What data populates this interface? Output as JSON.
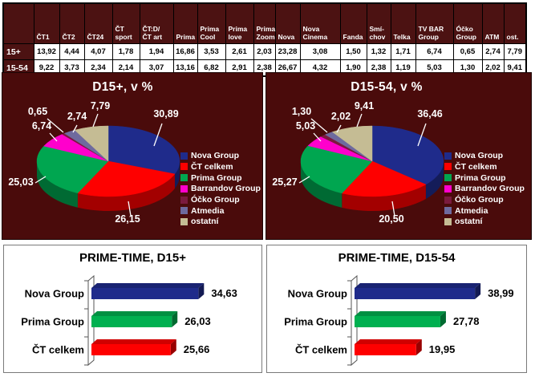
{
  "colors": {
    "panel_bg": "#4a0b0b",
    "table_header_bg": "#4c1212",
    "series": [
      "#1f2b8b",
      "#fe0000",
      "#00a650",
      "#ff00cc",
      "#7a1a3e",
      "#6e6a9e",
      "#c5bc94"
    ],
    "bar_series": [
      "#1f2b8b",
      "#00b050",
      "#fe0000"
    ]
  },
  "legend_labels": [
    "Nova Group",
    "ČT celkem",
    "Prima Group",
    "Barrandov Group",
    "Óčko Group",
    "Atmedia",
    "ostatní"
  ],
  "share_table": {
    "columns": [
      "ČT1",
      "ČT2",
      "ČT24",
      "ČT\nsport",
      "ČT:D/\nČT art",
      "Prima",
      "Prima\nCool",
      "Prima\nlove",
      "Prima\nZoom",
      "Nova",
      "Nova\nCinema",
      "Fanda",
      "Smí-\nchov",
      "Telka",
      "TV BAR\nGroup",
      "Óčko\nGroup",
      "ATM",
      "ost."
    ],
    "rows": [
      {
        "label": "15+",
        "values": [
          "13,92",
          "4,44",
          "4,07",
          "1,78",
          "1,94",
          "16,86",
          "3,53",
          "2,61",
          "2,03",
          "23,28",
          "3,08",
          "1,50",
          "1,32",
          "1,71",
          "6,74",
          "0,65",
          "2,74",
          "7,79"
        ]
      },
      {
        "label": "15-54",
        "values": [
          "9,22",
          "3,73",
          "2,34",
          "2,14",
          "3,07",
          "13,16",
          "6,82",
          "2,91",
          "2,38",
          "26,67",
          "4,32",
          "1,90",
          "2,38",
          "1,19",
          "5,03",
          "1,30",
          "2,02",
          "9,41"
        ]
      }
    ]
  },
  "chart_data": [
    {
      "type": "pie",
      "title": "D15+, v %",
      "labels": [
        "Nova Group",
        "ČT celkem",
        "Prima Group",
        "Barrandov Group",
        "Óčko Group",
        "Atmedia",
        "ostatní"
      ],
      "values": [
        30.89,
        26.15,
        25.03,
        6.74,
        0.65,
        2.74,
        7.79
      ],
      "value_labels": [
        "30,89",
        "26,15",
        "25,03",
        "6,74",
        "0,65",
        "2,74",
        "7,79"
      ],
      "legend_position": "right"
    },
    {
      "type": "pie",
      "title": "D15-54, v %",
      "labels": [
        "Nova Group",
        "ČT celkem",
        "Prima Group",
        "Barrandov Group",
        "Óčko Group",
        "Atmedia",
        "ostatní"
      ],
      "values": [
        36.46,
        20.5,
        25.27,
        5.03,
        1.3,
        2.02,
        9.41
      ],
      "value_labels": [
        "36,46",
        "20,50",
        "25,27",
        "5,03",
        "1,30",
        "2,02",
        "9,41"
      ],
      "legend_position": "right"
    },
    {
      "type": "bar",
      "title": "PRIME-TIME, D15+",
      "categories": [
        "Nova Group",
        "Prima Group",
        "ČT celkem"
      ],
      "values": [
        34.63,
        26.03,
        25.66
      ],
      "value_labels": [
        "34,63",
        "26,03",
        "25,66"
      ],
      "xlim": [
        0,
        45
      ]
    },
    {
      "type": "bar",
      "title": "PRIME-TIME, D15-54",
      "categories": [
        "Nova Group",
        "Prima Group",
        "ČT celkem"
      ],
      "values": [
        38.99,
        27.78,
        19.95
      ],
      "value_labels": [
        "38,99",
        "27,78",
        "19,95"
      ],
      "xlim": [
        0,
        45
      ]
    }
  ]
}
